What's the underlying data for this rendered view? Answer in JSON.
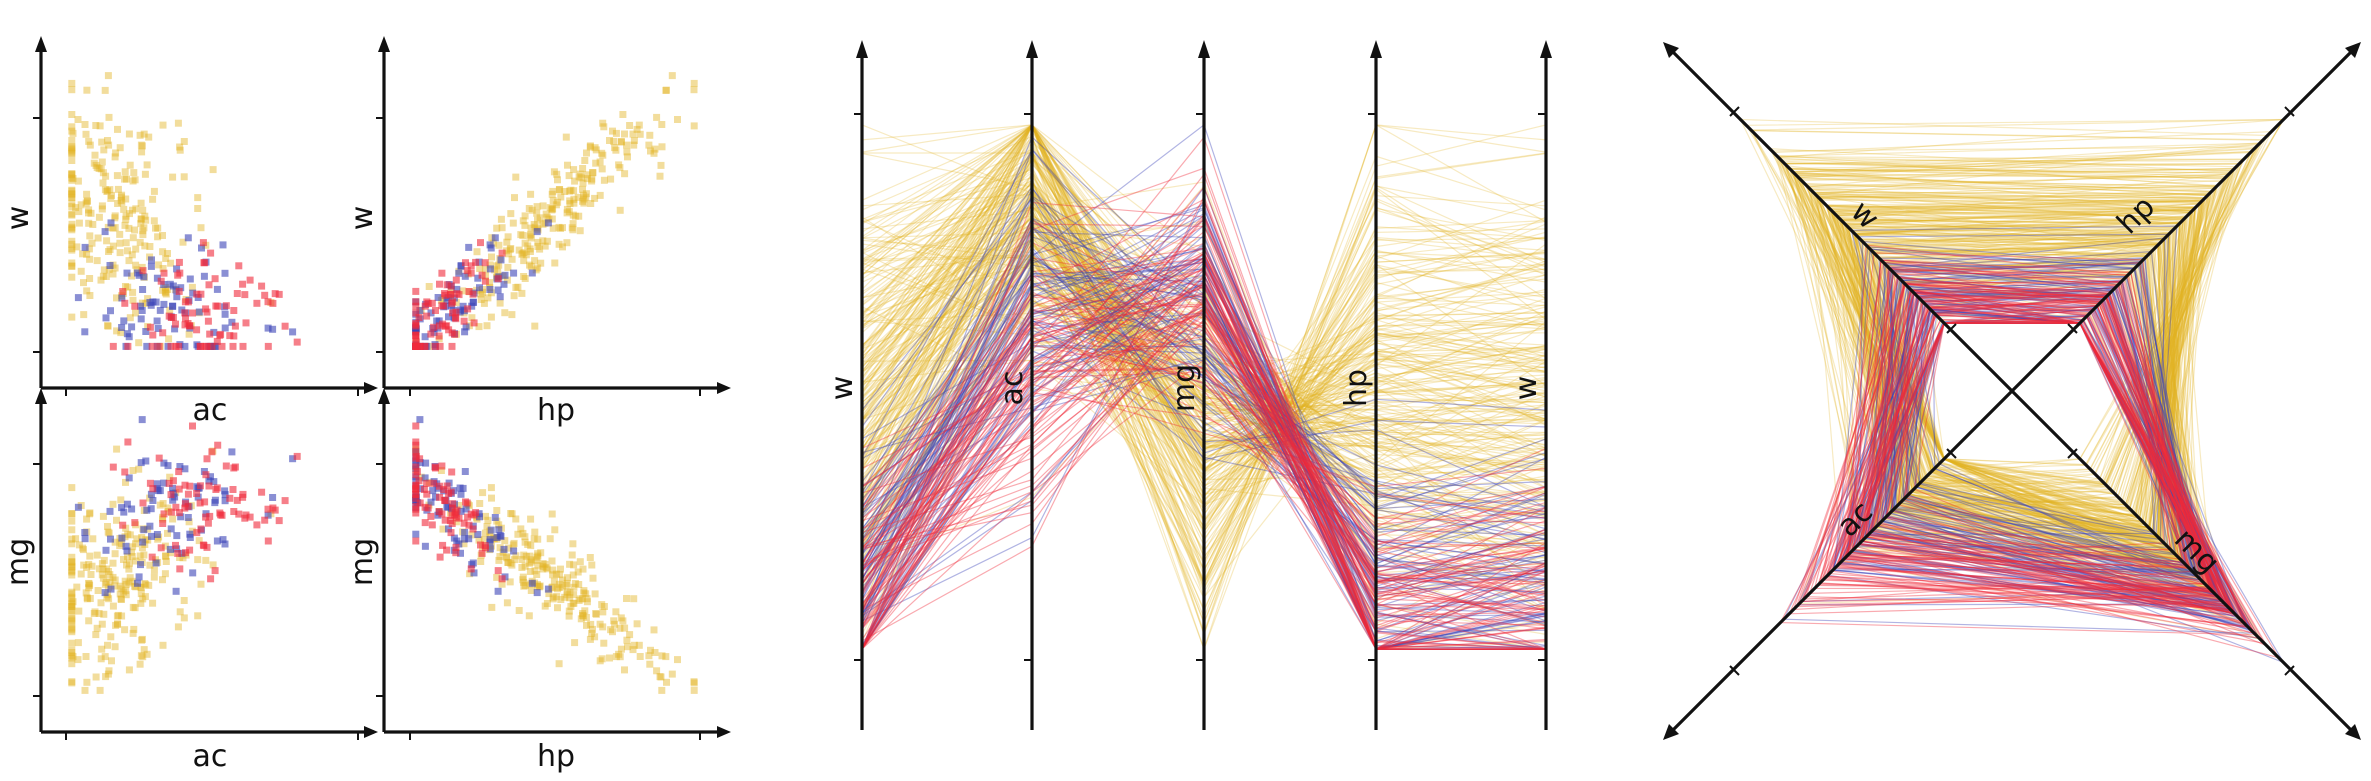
{
  "colors": {
    "group_gold": "#e2b324",
    "group_blue": "#3c44b8",
    "group_red": "#f02a3a",
    "axis": "#111111"
  },
  "chart_data": [
    {
      "type": "scatter",
      "panel": "scatterplot-matrix",
      "title": "",
      "cells": [
        {
          "x_label": "ac",
          "y_label": "w"
        },
        {
          "x_label": "hp",
          "y_label": "w"
        },
        {
          "x_label": "ac",
          "y_label": "mg"
        },
        {
          "x_label": "hp",
          "y_label": "mg"
        }
      ],
      "series": [
        {
          "color": "#e2b324",
          "count": 250,
          "points": "normalized 0-1 values per variable (ac, hp, mg, w)"
        },
        {
          "color": "#3c44b8",
          "count": 80
        },
        {
          "color": "#f02a3a",
          "count": 80
        }
      ]
    },
    {
      "type": "line",
      "panel": "parallel-coordinates",
      "axes": [
        "w",
        "ac",
        "mg",
        "hp",
        "w"
      ],
      "series": [
        {
          "color": "#e2b324",
          "count": 250
        },
        {
          "color": "#3c44b8",
          "count": 80
        },
        {
          "color": "#f02a3a",
          "count": 80
        }
      ]
    },
    {
      "type": "line",
      "panel": "radial-coordinates",
      "axes": [
        "w",
        "hp",
        "ac",
        "mg"
      ],
      "series": [
        {
          "color": "#e2b324",
          "count": 250
        },
        {
          "color": "#3c44b8",
          "count": 80
        },
        {
          "color": "#f02a3a",
          "count": 80
        }
      ]
    }
  ]
}
